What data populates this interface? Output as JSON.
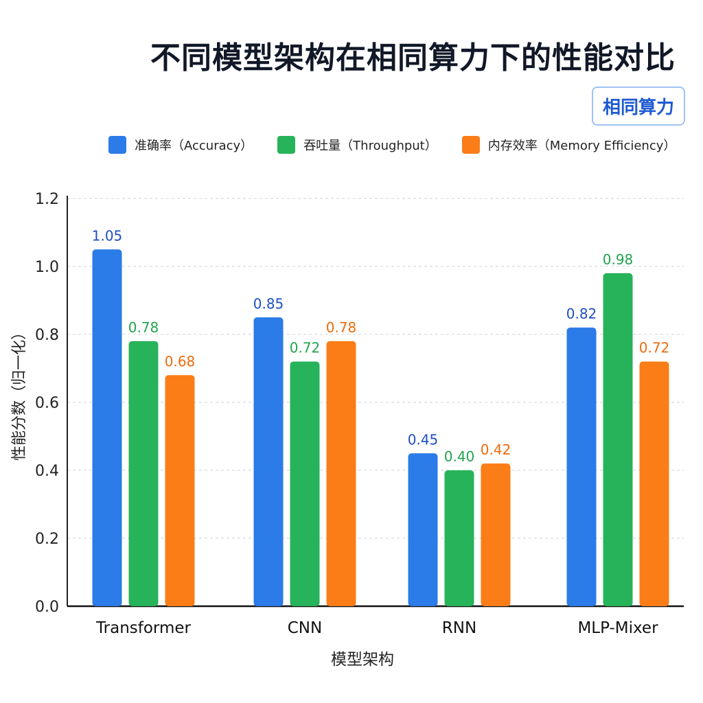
{
  "chart_data": {
    "type": "bar",
    "title": "不同模型架构在相同算力下的性能对比",
    "badge": "相同算力",
    "xlabel": "模型架构",
    "ylabel": "性能分数（归一化）",
    "ylim": [
      0,
      1.2
    ],
    "yticks": [
      "0.0",
      "0.2",
      "0.4",
      "0.6",
      "0.8",
      "1.0",
      "1.2"
    ],
    "grid": true,
    "legend_position": "top",
    "categories": [
      "Transformer",
      "CNN",
      "RNN",
      "MLP-Mixer"
    ],
    "series": [
      {
        "name": "准确率（Accuracy）",
        "color": "#2b7be8",
        "label_color": "#1d4fbf",
        "values": [
          1.05,
          0.85,
          0.45,
          0.82
        ],
        "labels": [
          "1.05",
          "0.85",
          "0.45",
          "0.82"
        ]
      },
      {
        "name": "吞吐量（Throughput）",
        "color": "#27b35a",
        "label_color": "#22a34e",
        "values": [
          0.78,
          0.72,
          0.4,
          0.98
        ],
        "labels": [
          "0.78",
          "0.72",
          "0.40",
          "0.98"
        ]
      },
      {
        "name": "内存效率（Memory Efficiency）",
        "color": "#fb7d17",
        "label_color": "#ee6b0c",
        "values": [
          0.68,
          0.78,
          0.42,
          0.72
        ],
        "labels": [
          "0.68",
          "0.78",
          "0.42",
          "0.72"
        ]
      }
    ]
  }
}
